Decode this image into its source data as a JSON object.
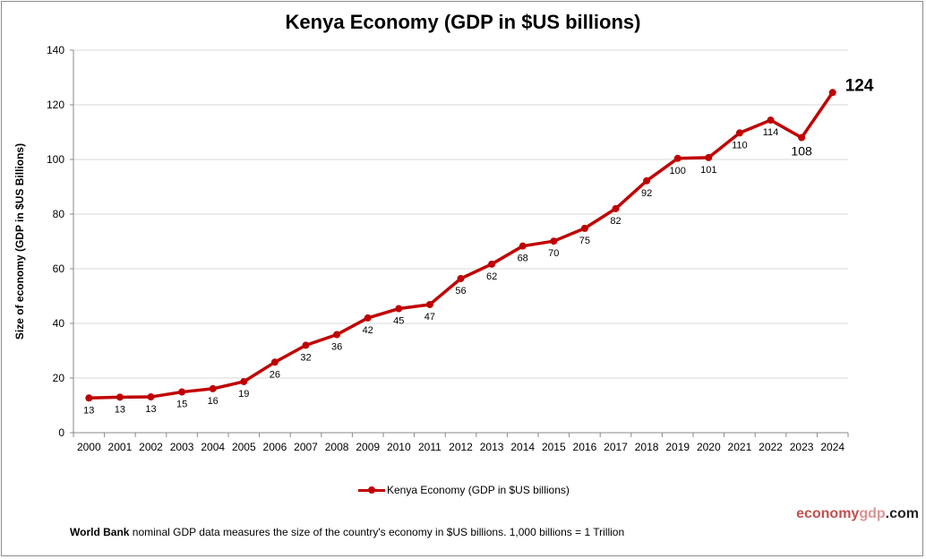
{
  "chart_data": {
    "type": "line",
    "title": "Kenya Economy (GDP in $US billions)",
    "xlabel": "",
    "ylabel": "Size of economy (GDP in $US Billions)",
    "ylim": [
      0,
      140
    ],
    "yticks": [
      0,
      20,
      40,
      60,
      80,
      100,
      120,
      140
    ],
    "grid": true,
    "legend_position": "bottom",
    "categories": [
      "2000",
      "2001",
      "2002",
      "2003",
      "2004",
      "2005",
      "2006",
      "2007",
      "2008",
      "2009",
      "2010",
      "2011",
      "2012",
      "2013",
      "2014",
      "2015",
      "2016",
      "2017",
      "2018",
      "2019",
      "2020",
      "2021",
      "2022",
      "2023",
      "2024"
    ],
    "series": [
      {
        "name": "Kenya Economy (GDP in $US billions)",
        "color": "#c00000",
        "values": [
          12.7,
          13.0,
          13.1,
          14.9,
          16.1,
          18.7,
          25.8,
          32.0,
          35.9,
          42.0,
          45.4,
          46.9,
          56.4,
          61.7,
          68.3,
          70.1,
          74.8,
          82.0,
          92.2,
          100.4,
          100.7,
          109.7,
          114.4,
          108.0,
          124.5
        ],
        "data_labels": [
          "13",
          "13",
          "13",
          "15",
          "16",
          "19",
          "26",
          "32",
          "36",
          "42",
          "45",
          "47",
          "56",
          "62",
          "68",
          "70",
          "75",
          "82",
          "92",
          "100",
          "101",
          "110",
          "114",
          "108",
          "124"
        ]
      }
    ]
  },
  "footer": {
    "source_bold": "World Bank",
    "note": " nominal GDP data  measures the size of the country's economy in $US billions. 1,000 billions = 1 Trillion",
    "brand_part1": "economy",
    "brand_part2": "gdp",
    "brand_part3": ".com"
  }
}
